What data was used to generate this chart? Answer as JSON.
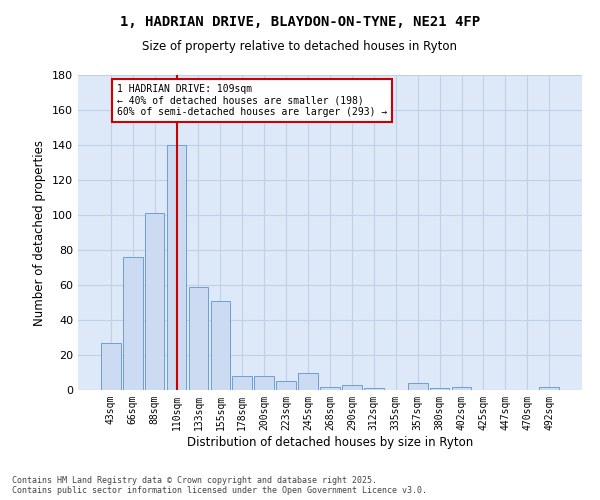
{
  "title1": "1, HADRIAN DRIVE, BLAYDON-ON-TYNE, NE21 4FP",
  "title2": "Size of property relative to detached houses in Ryton",
  "xlabel": "Distribution of detached houses by size in Ryton",
  "ylabel": "Number of detached properties",
  "categories": [
    "43sqm",
    "66sqm",
    "88sqm",
    "110sqm",
    "133sqm",
    "155sqm",
    "178sqm",
    "200sqm",
    "223sqm",
    "245sqm",
    "268sqm",
    "290sqm",
    "312sqm",
    "335sqm",
    "357sqm",
    "380sqm",
    "402sqm",
    "425sqm",
    "447sqm",
    "470sqm",
    "492sqm"
  ],
  "values": [
    27,
    76,
    101,
    140,
    59,
    51,
    8,
    8,
    5,
    10,
    2,
    3,
    1,
    0,
    4,
    1,
    2,
    0,
    0,
    0,
    2
  ],
  "bar_color": "#ccdaf2",
  "bar_edge_color": "#6b9fd4",
  "grid_color": "#c0d0e8",
  "background_color": "#dde8f8",
  "annotation_text": "1 HADRIAN DRIVE: 109sqm\n← 40% of detached houses are smaller (198)\n60% of semi-detached houses are larger (293) →",
  "annotation_box_color": "#ffffff",
  "annotation_box_edge": "#cc0000",
  "vline_color": "#cc0000",
  "footer": "Contains HM Land Registry data © Crown copyright and database right 2025.\nContains public sector information licensed under the Open Government Licence v3.0.",
  "ylim": [
    0,
    180
  ],
  "yticks": [
    0,
    20,
    40,
    60,
    80,
    100,
    120,
    140,
    160,
    180
  ],
  "vline_index": 3
}
